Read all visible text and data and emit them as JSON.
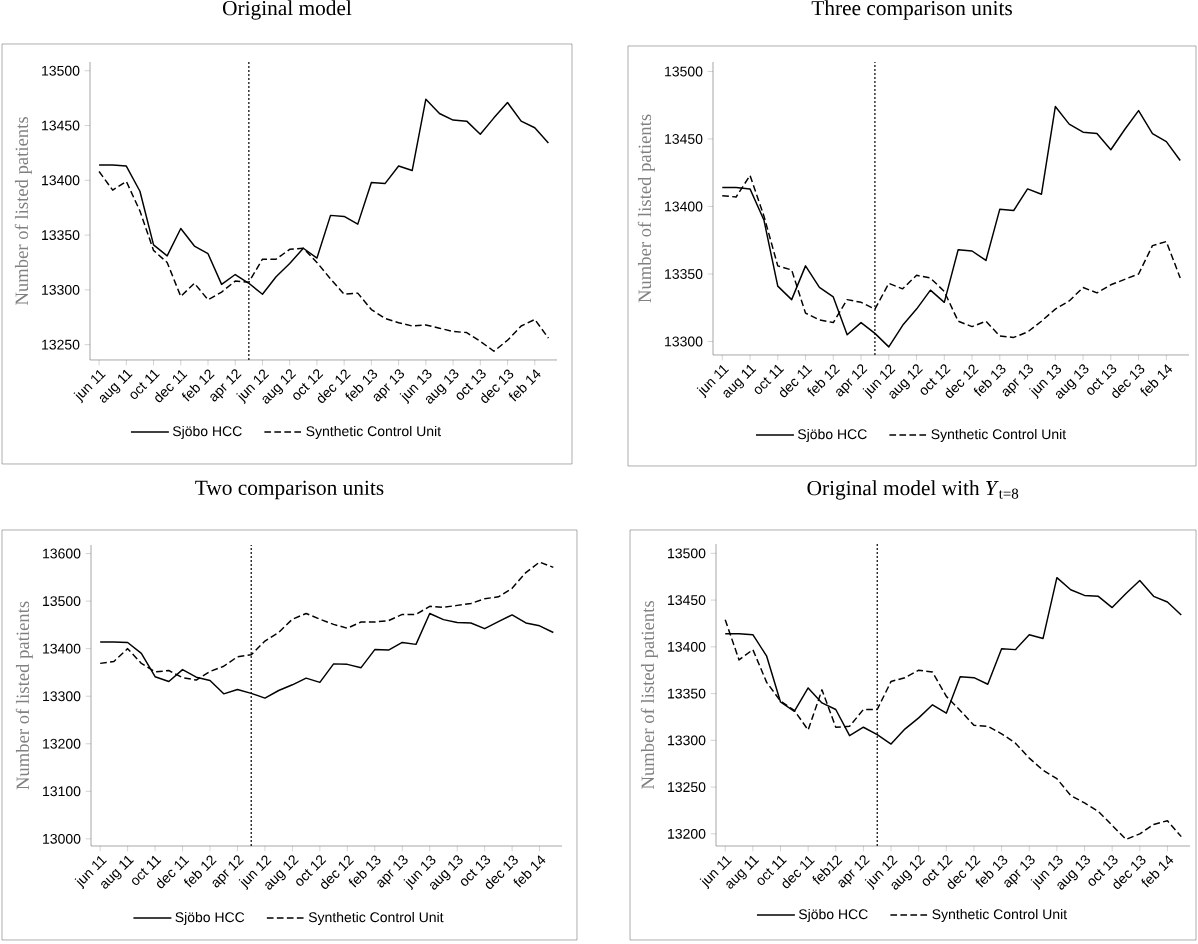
{
  "chart_data": [
    {
      "type": "line",
      "title": "Original model",
      "ylabel": "Number of listed patients",
      "x": [
        "2011-06",
        "2011-07",
        "2011-08",
        "2011-09",
        "2011-10",
        "2011-11",
        "2011-12",
        "2012-01",
        "2012-02",
        "2012-03",
        "2012-04",
        "2012-05",
        "2012-06",
        "2012-07",
        "2012-08",
        "2012-09",
        "2012-10",
        "2012-11",
        "2012-12",
        "2013-01",
        "2013-02",
        "2013-03",
        "2013-04",
        "2013-05",
        "2013-06",
        "2013-07",
        "2013-08",
        "2013-09",
        "2013-10",
        "2013-11",
        "2013-12",
        "2014-01",
        "2014-02",
        "2014-03"
      ],
      "series": [
        {
          "name": "Sjöbo HCC",
          "color": "#000000",
          "line_style": "solid",
          "values": [
            13414,
            13414,
            13413,
            13390,
            13341,
            13331,
            13356,
            13340,
            13333,
            13305,
            13314,
            13306,
            13296,
            13312,
            13324,
            13338,
            13329,
            13368,
            13367,
            13360,
            13398,
            13397,
            13413,
            13409,
            13474,
            13461,
            13455,
            13454,
            13442,
            13457,
            13471,
            13454,
            13448,
            13434
          ]
        },
        {
          "name": "Synthetic Control Unit",
          "color": "#000000",
          "line_style": "dashed",
          "values": [
            13408,
            13391,
            13399,
            13372,
            13336,
            13325,
            13294,
            13306,
            13291,
            13298,
            13308,
            13307,
            13328,
            13328,
            13337,
            13338,
            13325,
            13310,
            13296,
            13297,
            13282,
            13274,
            13270,
            13267,
            13268,
            13265,
            13262,
            13261,
            13253,
            13244,
            13254,
            13267,
            13273,
            13256
          ]
        }
      ],
      "xlim": [
        "2011-05-11",
        "2014-03-20"
      ],
      "ylim": [
        13236,
        13508
      ],
      "yticks": [
        13250,
        13300,
        13350,
        13400,
        13450,
        13500
      ],
      "xticks": [
        {
          "value": "2011-06",
          "label": "jun 11"
        },
        {
          "value": "2011-08",
          "label": "aug 11"
        },
        {
          "value": "2011-10",
          "label": "oct 11"
        },
        {
          "value": "2011-12",
          "label": "dec 11"
        },
        {
          "value": "2012-02",
          "label": "feb 12"
        },
        {
          "value": "2012-04",
          "label": "apr 12"
        },
        {
          "value": "2012-06",
          "label": "jun 12"
        },
        {
          "value": "2012-08",
          "label": "aug 12"
        },
        {
          "value": "2012-10",
          "label": "oct 12"
        },
        {
          "value": "2012-12",
          "label": "dec 12"
        },
        {
          "value": "2013-02",
          "label": "feb 13"
        },
        {
          "value": "2013-04",
          "label": "apr 13"
        },
        {
          "value": "2013-06",
          "label": "jun 13"
        },
        {
          "value": "2013-08",
          "label": "aug 13"
        },
        {
          "value": "2013-10",
          "label": "oct 13"
        },
        {
          "value": "2013-12",
          "label": "dec 13"
        },
        {
          "value": "2014-02",
          "label": "feb 14"
        }
      ],
      "ref_lines": [
        {
          "axis": "x",
          "value": "2012-05",
          "line_style": "dotted",
          "color": "#000000"
        }
      ],
      "legend": "bottom"
    },
    {
      "type": "line",
      "title": "Three comparison units",
      "ylabel": "Number of listed patients",
      "x": [
        "2011-06",
        "2011-07",
        "2011-08",
        "2011-09",
        "2011-10",
        "2011-11",
        "2011-12",
        "2012-01",
        "2012-02",
        "2012-03",
        "2012-04",
        "2012-05",
        "2012-06",
        "2012-07",
        "2012-08",
        "2012-09",
        "2012-10",
        "2012-11",
        "2012-12",
        "2013-01",
        "2013-02",
        "2013-03",
        "2013-04",
        "2013-05",
        "2013-06",
        "2013-07",
        "2013-08",
        "2013-09",
        "2013-10",
        "2013-11",
        "2013-12",
        "2014-01",
        "2014-02",
        "2014-03"
      ],
      "series": [
        {
          "name": "Sjöbo HCC",
          "color": "#000000",
          "line_style": "solid",
          "values": [
            13414,
            13414,
            13413,
            13390,
            13341,
            13331,
            13356,
            13340,
            13333,
            13305,
            13314,
            13306,
            13296,
            13312,
            13324,
            13338,
            13329,
            13368,
            13367,
            13360,
            13398,
            13397,
            13413,
            13409,
            13474,
            13461,
            13455,
            13454,
            13442,
            13457,
            13471,
            13454,
            13448,
            13434
          ]
        },
        {
          "name": "Synthetic Control Unit",
          "color": "#000000",
          "line_style": "dashed",
          "values": [
            13408,
            13407,
            13423,
            13393,
            13356,
            13353,
            13321,
            13316,
            13314,
            13331,
            13329,
            13324,
            13343,
            13339,
            13349,
            13347,
            13337,
            13315,
            13311,
            13315,
            13304,
            13303,
            13307,
            13315,
            13324,
            13330,
            13340,
            13336,
            13342,
            13346,
            13350,
            13371,
            13374,
            13347
          ]
        }
      ],
      "xlim": [
        "2011-05-11",
        "2014-03-20"
      ],
      "ylim": [
        13290,
        13507
      ],
      "yticks": [
        13300,
        13350,
        13400,
        13450,
        13500
      ],
      "xticks": [
        {
          "value": "2011-06",
          "label": "jun 11"
        },
        {
          "value": "2011-08",
          "label": "aug 11"
        },
        {
          "value": "2011-10",
          "label": "oct 11"
        },
        {
          "value": "2011-12",
          "label": "dec 11"
        },
        {
          "value": "2012-02",
          "label": "feb 12"
        },
        {
          "value": "2012-04",
          "label": "apr 12"
        },
        {
          "value": "2012-06",
          "label": "jun 12"
        },
        {
          "value": "2012-08",
          "label": "aug 12"
        },
        {
          "value": "2012-10",
          "label": "oct 12"
        },
        {
          "value": "2012-12",
          "label": "dec 12"
        },
        {
          "value": "2013-02",
          "label": "feb 13"
        },
        {
          "value": "2013-04",
          "label": "apr 13"
        },
        {
          "value": "2013-06",
          "label": "jun 13"
        },
        {
          "value": "2013-08",
          "label": "aug 13"
        },
        {
          "value": "2013-10",
          "label": "oct 13"
        },
        {
          "value": "2013-12",
          "label": "dec 13"
        },
        {
          "value": "2014-02",
          "label": "feb 14"
        }
      ],
      "ref_lines": [
        {
          "axis": "x",
          "value": "2012-05",
          "line_style": "dotted",
          "color": "#000000"
        }
      ],
      "legend": "bottom"
    },
    {
      "type": "line",
      "title": "Two comparison units",
      "ylabel": "Number of listed patients",
      "x": [
        "2011-06",
        "2011-07",
        "2011-08",
        "2011-09",
        "2011-10",
        "2011-11",
        "2011-12",
        "2012-01",
        "2012-02",
        "2012-03",
        "2012-04",
        "2012-05",
        "2012-06",
        "2012-07",
        "2012-08",
        "2012-09",
        "2012-10",
        "2012-11",
        "2012-12",
        "2013-01",
        "2013-02",
        "2013-03",
        "2013-04",
        "2013-05",
        "2013-06",
        "2013-07",
        "2013-08",
        "2013-09",
        "2013-10",
        "2013-11",
        "2013-12",
        "2014-01",
        "2014-02",
        "2014-03"
      ],
      "series": [
        {
          "name": "Sjöbo HCC",
          "color": "#000000",
          "line_style": "solid",
          "values": [
            13414,
            13414,
            13413,
            13390,
            13341,
            13331,
            13356,
            13340,
            13333,
            13305,
            13314,
            13306,
            13296,
            13312,
            13324,
            13338,
            13329,
            13368,
            13367,
            13360,
            13398,
            13397,
            13413,
            13409,
            13474,
            13461,
            13455,
            13454,
            13442,
            13457,
            13471,
            13454,
            13448,
            13434
          ]
        },
        {
          "name": "Synthetic Control Unit",
          "color": "#000000",
          "line_style": "dashed",
          "values": [
            13369,
            13373,
            13400,
            13369,
            13351,
            13354,
            13339,
            13334,
            13352,
            13363,
            13383,
            13387,
            13416,
            13434,
            13462,
            13474,
            13462,
            13451,
            13443,
            13456,
            13456,
            13459,
            13472,
            13472,
            13489,
            13487,
            13491,
            13495,
            13505,
            13509,
            13527,
            13560,
            13582,
            13571
          ]
        }
      ],
      "xlim": [
        "2011-05-11",
        "2014-03-20"
      ],
      "ylim": [
        12985,
        13618
      ],
      "yticks": [
        13000,
        13100,
        13200,
        13300,
        13400,
        13500,
        13600
      ],
      "xticks": [
        {
          "value": "2011-06",
          "label": "jun 11"
        },
        {
          "value": "2011-08",
          "label": "aug 11"
        },
        {
          "value": "2011-10",
          "label": "oct 11"
        },
        {
          "value": "2011-12",
          "label": "dec 11"
        },
        {
          "value": "2012-02",
          "label": "feb 12"
        },
        {
          "value": "2012-04",
          "label": "apr 12"
        },
        {
          "value": "2012-06",
          "label": "jun 12"
        },
        {
          "value": "2012-08",
          "label": "aug 12"
        },
        {
          "value": "2012-10",
          "label": "oct 12"
        },
        {
          "value": "2012-12",
          "label": "dec 12"
        },
        {
          "value": "2013-02",
          "label": "feb 13"
        },
        {
          "value": "2013-04",
          "label": "apr 13"
        },
        {
          "value": "2013-06",
          "label": "jun 13"
        },
        {
          "value": "2013-08",
          "label": "aug 13"
        },
        {
          "value": "2013-10",
          "label": "oct 13"
        },
        {
          "value": "2013-12",
          "label": "dec 13"
        },
        {
          "value": "2014-02",
          "label": "feb 14"
        }
      ],
      "ref_lines": [
        {
          "axis": "x",
          "value": "2012-05",
          "line_style": "dotted",
          "color": "#000000"
        }
      ],
      "legend": "bottom"
    },
    {
      "type": "line",
      "title": "Original model with *Y*$_{t=8}$",
      "ylabel": "Number of listed patients",
      "x": [
        "2011-06",
        "2011-07",
        "2011-08",
        "2011-09",
        "2011-10",
        "2011-11",
        "2011-12",
        "2012-01",
        "2012-02",
        "2012-03",
        "2012-04",
        "2012-05",
        "2012-06",
        "2012-07",
        "2012-08",
        "2012-09",
        "2012-10",
        "2012-11",
        "2012-12",
        "2013-01",
        "2013-02",
        "2013-03",
        "2013-04",
        "2013-05",
        "2013-06",
        "2013-07",
        "2013-08",
        "2013-09",
        "2013-10",
        "2013-11",
        "2013-12",
        "2014-01",
        "2014-02",
        "2014-03"
      ],
      "series": [
        {
          "name": "Sjöbo HCC",
          "color": "#000000",
          "line_style": "solid",
          "values": [
            13414,
            13414,
            13413,
            13390,
            13341,
            13331,
            13356,
            13340,
            13333,
            13305,
            13314,
            13306,
            13296,
            13312,
            13324,
            13338,
            13329,
            13368,
            13367,
            13360,
            13398,
            13397,
            13413,
            13409,
            13474,
            13461,
            13455,
            13454,
            13442,
            13457,
            13471,
            13454,
            13448,
            13434
          ]
        },
        {
          "name": "Synthetic Control Unit",
          "color": "#000000",
          "line_style": "dashed",
          "values": [
            13429,
            13386,
            13397,
            13362,
            13342,
            13332,
            13311,
            13354,
            13314,
            13315,
            13333,
            13333,
            13363,
            13367,
            13375,
            13373,
            13347,
            13332,
            13316,
            13315,
            13307,
            13297,
            13281,
            13268,
            13259,
            13241,
            13233,
            13224,
            13209,
            13194,
            13200,
            13210,
            13214,
            13197
          ]
        }
      ],
      "xlim": [
        "2011-05-11",
        "2014-03-20"
      ],
      "ylim": [
        13187,
        13510
      ],
      "yticks": [
        13200,
        13250,
        13300,
        13350,
        13400,
        13450,
        13500
      ],
      "xticks": [
        {
          "value": "2011-06",
          "label": "jun 11"
        },
        {
          "value": "2011-08",
          "label": "aug 11"
        },
        {
          "value": "2011-10",
          "label": "oct 11"
        },
        {
          "value": "2011-12",
          "label": "dec 11"
        },
        {
          "value": "2012-02",
          "label": "feb12"
        },
        {
          "value": "2012-04",
          "label": "apr 12"
        },
        {
          "value": "2012-06",
          "label": "jun 12"
        },
        {
          "value": "2012-08",
          "label": "aug 12"
        },
        {
          "value": "2012-10",
          "label": "oct 12"
        },
        {
          "value": "2012-12",
          "label": "dec 12"
        },
        {
          "value": "2013-02",
          "label": "feb 13"
        },
        {
          "value": "2013-04",
          "label": "apr 13"
        },
        {
          "value": "2013-06",
          "label": "jun 13"
        },
        {
          "value": "2013-08",
          "label": "aug 13"
        },
        {
          "value": "2013-10",
          "label": "oct 13"
        },
        {
          "value": "2013-12",
          "label": "dec 13"
        },
        {
          "value": "2014-02",
          "label": "feb 14"
        }
      ],
      "ref_lines": [
        {
          "axis": "x",
          "value": "2012-05",
          "line_style": "dotted",
          "color": "#000000"
        }
      ],
      "legend": "bottom"
    }
  ]
}
